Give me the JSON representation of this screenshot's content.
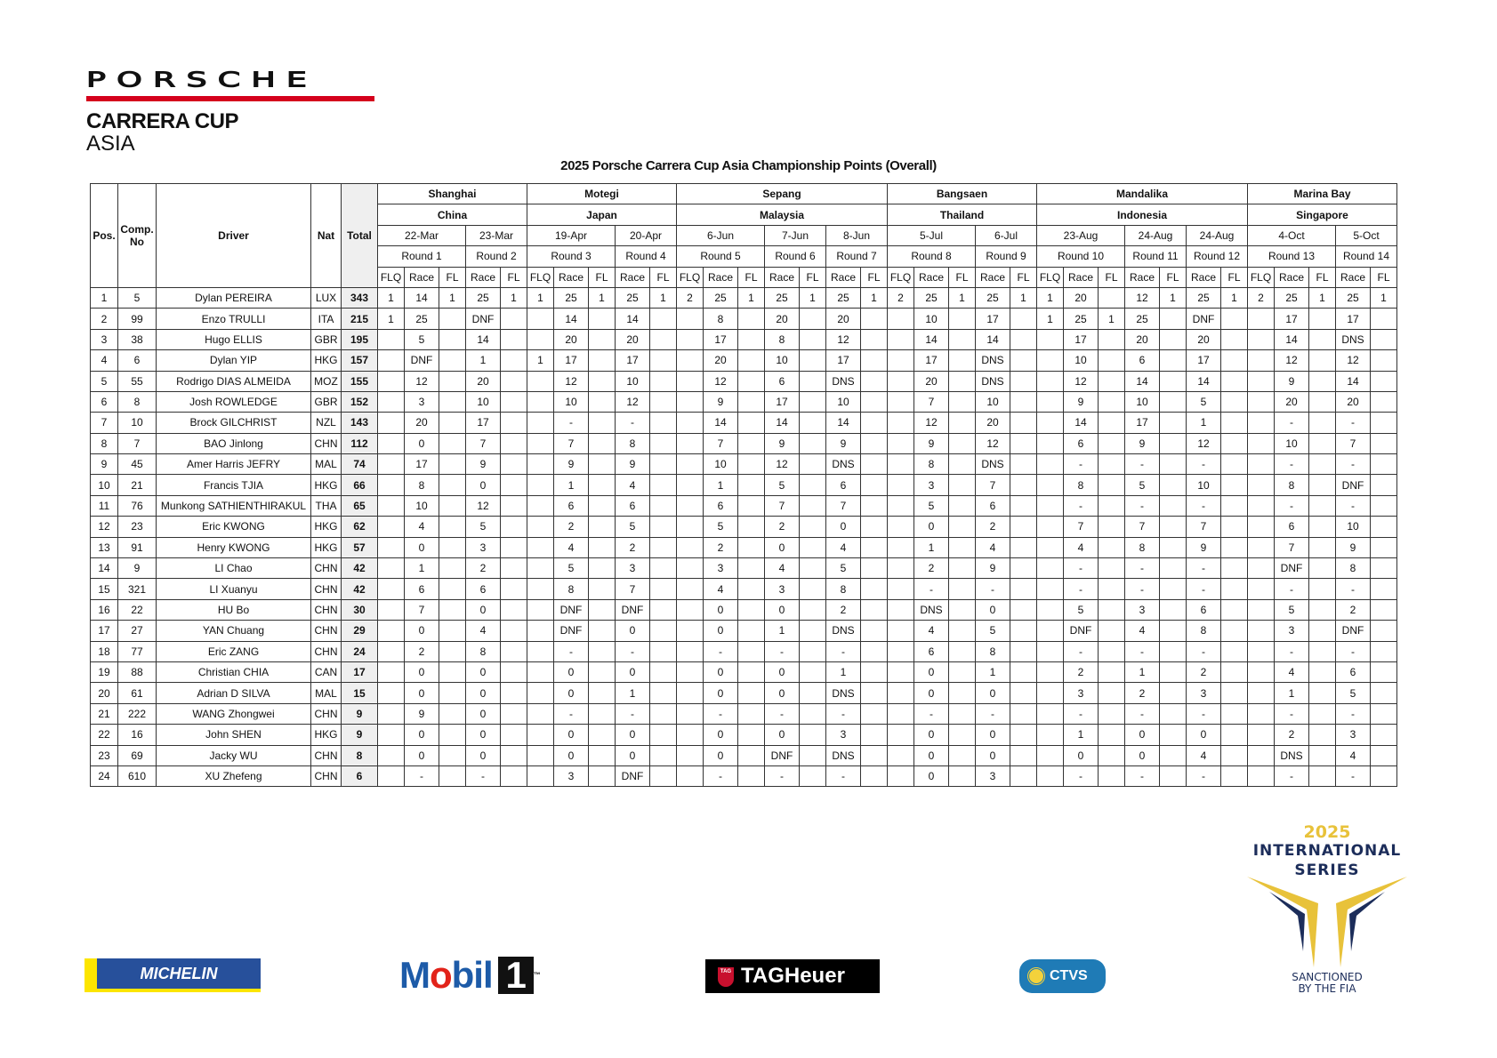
{
  "brand": {
    "porsche": "PORSCHE",
    "series": "CARRERA CUP",
    "region": "ASIA",
    "accent_color": "#d5001c"
  },
  "title": "2025 Porsche Carrera Cup Asia Championship Points (Overall)",
  "headers": {
    "pos": "Pos.",
    "comp_no": "Comp. No",
    "driver": "Driver",
    "nat": "Nat",
    "total": "Total",
    "flq": "FLQ",
    "race": "Race",
    "fl": "FL"
  },
  "venues": [
    {
      "venue": "Shanghai",
      "country": "China",
      "rounds": [
        0,
        1
      ]
    },
    {
      "venue": "Motegi",
      "country": "Japan",
      "rounds": [
        2,
        3
      ]
    },
    {
      "venue": "Sepang",
      "country": "Malaysia",
      "rounds": [
        4,
        5,
        6
      ]
    },
    {
      "venue": "Bangsaen",
      "country": "Thailand",
      "rounds": [
        7,
        8
      ]
    },
    {
      "venue": "Mandalika",
      "country": "Indonesia",
      "rounds": [
        9,
        10,
        11
      ]
    },
    {
      "venue": "Marina Bay",
      "country": "Singapore",
      "rounds": [
        12,
        13
      ]
    }
  ],
  "rounds": [
    {
      "date": "22-Mar",
      "label": "Round 1",
      "flq": true
    },
    {
      "date": "23-Mar",
      "label": "Round 2",
      "flq": false
    },
    {
      "date": "19-Apr",
      "label": "Round 3",
      "flq": true
    },
    {
      "date": "20-Apr",
      "label": "Round 4",
      "flq": false
    },
    {
      "date": "6-Jun",
      "label": "Round 5",
      "flq": true
    },
    {
      "date": "7-Jun",
      "label": "Round 6",
      "flq": false
    },
    {
      "date": "8-Jun",
      "label": "Round 7",
      "flq": false
    },
    {
      "date": "5-Jul",
      "label": "Round 8",
      "flq": true
    },
    {
      "date": "6-Jul",
      "label": "Round 9",
      "flq": false
    },
    {
      "date": "23-Aug",
      "label": "Round 10",
      "flq": true
    },
    {
      "date": "24-Aug",
      "label": "Round 11",
      "flq": false
    },
    {
      "date": "24-Aug",
      "label": "Round 12",
      "flq": false
    },
    {
      "date": "4-Oct",
      "label": "Round 13",
      "flq": true
    },
    {
      "date": "5-Oct",
      "label": "Round 14",
      "flq": false
    }
  ],
  "drivers": [
    {
      "pos": "1",
      "no": "5",
      "name": "Dylan PEREIRA",
      "nat": "LUX",
      "total": "343",
      "race": [
        "14",
        "25",
        "25",
        "25",
        "25",
        "25",
        "25",
        "25",
        "25",
        "20",
        "12",
        "25",
        "25",
        "25"
      ],
      "flq": [
        "1",
        "",
        "1",
        "",
        "2",
        "",
        "",
        "2",
        "",
        "1",
        "",
        "",
        "2",
        ""
      ],
      "fl": [
        "1",
        "1",
        "1",
        "1",
        "1",
        "1",
        "1",
        "1",
        "1",
        "",
        "1",
        "1",
        "1",
        "1"
      ]
    },
    {
      "pos": "2",
      "no": "99",
      "name": "Enzo TRULLI",
      "nat": "ITA",
      "total": "215",
      "race": [
        "25",
        "DNF",
        "14",
        "14",
        "8",
        "20",
        "20",
        "10",
        "17",
        "25",
        "25",
        "DNF",
        "17",
        "17"
      ],
      "flq": [
        "1",
        "",
        "",
        "",
        "",
        "",
        "",
        "",
        "",
        "1",
        "",
        "",
        "",
        ""
      ],
      "fl": [
        "",
        "",
        "",
        "",
        "",
        "",
        "",
        "",
        "",
        "1",
        "",
        "",
        "",
        ""
      ]
    },
    {
      "pos": "3",
      "no": "38",
      "name": "Hugo ELLIS",
      "nat": "GBR",
      "total": "195",
      "race": [
        "5",
        "14",
        "20",
        "20",
        "17",
        "8",
        "12",
        "14",
        "14",
        "17",
        "20",
        "20",
        "14",
        "DNS"
      ]
    },
    {
      "pos": "4",
      "no": "6",
      "name": "Dylan YIP",
      "nat": "HKG",
      "total": "157",
      "race": [
        "DNF",
        "1",
        "17",
        "17",
        "20",
        "10",
        "17",
        "17",
        "DNS",
        "10",
        "6",
        "17",
        "12",
        "12"
      ],
      "flq": [
        "",
        "",
        "1",
        "",
        "",
        "",
        "",
        "",
        "",
        "",
        "",
        "",
        "",
        ""
      ]
    },
    {
      "pos": "5",
      "no": "55",
      "name": "Rodrigo DIAS ALMEIDA",
      "nat": "MOZ",
      "total": "155",
      "race": [
        "12",
        "20",
        "12",
        "10",
        "12",
        "6",
        "DNS",
        "20",
        "DNS",
        "12",
        "14",
        "14",
        "9",
        "14"
      ]
    },
    {
      "pos": "6",
      "no": "8",
      "name": "Josh ROWLEDGE",
      "nat": "GBR",
      "total": "152",
      "race": [
        "3",
        "10",
        "10",
        "12",
        "9",
        "17",
        "10",
        "7",
        "10",
        "9",
        "10",
        "5",
        "20",
        "20"
      ]
    },
    {
      "pos": "7",
      "no": "10",
      "name": "Brock GILCHRIST",
      "nat": "NZL",
      "total": "143",
      "race": [
        "20",
        "17",
        "-",
        "-",
        "14",
        "14",
        "14",
        "12",
        "20",
        "14",
        "17",
        "1",
        "-",
        "-"
      ]
    },
    {
      "pos": "8",
      "no": "7",
      "name": "BAO Jinlong",
      "nat": "CHN",
      "total": "112",
      "race": [
        "0",
        "7",
        "7",
        "8",
        "7",
        "9",
        "9",
        "9",
        "12",
        "6",
        "9",
        "12",
        "10",
        "7"
      ]
    },
    {
      "pos": "9",
      "no": "45",
      "name": "Amer Harris JEFRY",
      "nat": "MAL",
      "total": "74",
      "race": [
        "17",
        "9",
        "9",
        "9",
        "10",
        "12",
        "DNS",
        "8",
        "DNS",
        "-",
        "-",
        "-",
        "-",
        "-"
      ]
    },
    {
      "pos": "10",
      "no": "21",
      "name": "Francis TJIA",
      "nat": "HKG",
      "total": "66",
      "race": [
        "8",
        "0",
        "1",
        "4",
        "1",
        "5",
        "6",
        "3",
        "7",
        "8",
        "5",
        "10",
        "8",
        "DNF"
      ]
    },
    {
      "pos": "11",
      "no": "76",
      "name": "Munkong SATHIENTHIRAKUL",
      "nat": "THA",
      "total": "65",
      "race": [
        "10",
        "12",
        "6",
        "6",
        "6",
        "7",
        "7",
        "5",
        "6",
        "-",
        "-",
        "-",
        "-",
        "-"
      ]
    },
    {
      "pos": "12",
      "no": "23",
      "name": "Eric KWONG",
      "nat": "HKG",
      "total": "62",
      "race": [
        "4",
        "5",
        "2",
        "5",
        "5",
        "2",
        "0",
        "0",
        "2",
        "7",
        "7",
        "7",
        "6",
        "10"
      ]
    },
    {
      "pos": "13",
      "no": "91",
      "name": "Henry KWONG",
      "nat": "HKG",
      "total": "57",
      "race": [
        "0",
        "3",
        "4",
        "2",
        "2",
        "0",
        "4",
        "1",
        "4",
        "4",
        "8",
        "9",
        "7",
        "9"
      ]
    },
    {
      "pos": "14",
      "no": "9",
      "name": "LI Chao",
      "nat": "CHN",
      "total": "42",
      "race": [
        "1",
        "2",
        "5",
        "3",
        "3",
        "4",
        "5",
        "2",
        "9",
        "-",
        "-",
        "-",
        "DNF",
        "8"
      ]
    },
    {
      "pos": "15",
      "no": "321",
      "name": "LI Xuanyu",
      "nat": "CHN",
      "total": "42",
      "race": [
        "6",
        "6",
        "8",
        "7",
        "4",
        "3",
        "8",
        "-",
        "-",
        "-",
        "-",
        "-",
        "-",
        "-"
      ]
    },
    {
      "pos": "16",
      "no": "22",
      "name": "HU Bo",
      "nat": "CHN",
      "total": "30",
      "race": [
        "7",
        "0",
        "DNF",
        "DNF",
        "0",
        "0",
        "2",
        "DNS",
        "0",
        "5",
        "3",
        "6",
        "5",
        "2"
      ]
    },
    {
      "pos": "17",
      "no": "27",
      "name": "YAN Chuang",
      "nat": "CHN",
      "total": "29",
      "race": [
        "0",
        "4",
        "DNF",
        "0",
        "0",
        "1",
        "DNS",
        "4",
        "5",
        "DNF",
        "4",
        "8",
        "3",
        "DNF"
      ]
    },
    {
      "pos": "18",
      "no": "77",
      "name": "Eric ZANG",
      "nat": "CHN",
      "total": "24",
      "race": [
        "2",
        "8",
        "-",
        "-",
        "-",
        "-",
        "-",
        "6",
        "8",
        "-",
        "-",
        "-",
        "-",
        "-"
      ]
    },
    {
      "pos": "19",
      "no": "88",
      "name": "Christian CHIA",
      "nat": "CAN",
      "total": "17",
      "race": [
        "0",
        "0",
        "0",
        "0",
        "0",
        "0",
        "1",
        "0",
        "1",
        "2",
        "1",
        "2",
        "4",
        "6"
      ]
    },
    {
      "pos": "20",
      "no": "61",
      "name": "Adrian D SILVA",
      "nat": "MAL",
      "total": "15",
      "race": [
        "0",
        "0",
        "0",
        "1",
        "0",
        "0",
        "DNS",
        "0",
        "0",
        "3",
        "2",
        "3",
        "1",
        "5"
      ]
    },
    {
      "pos": "21",
      "no": "222",
      "name": "WANG Zhongwei",
      "nat": "CHN",
      "total": "9",
      "race": [
        "9",
        "0",
        "-",
        "-",
        "-",
        "-",
        "-",
        "-",
        "-",
        "-",
        "-",
        "-",
        "-",
        "-"
      ]
    },
    {
      "pos": "22",
      "no": "16",
      "name": "John SHEN",
      "nat": "HKG",
      "total": "9",
      "race": [
        "0",
        "0",
        "0",
        "0",
        "0",
        "0",
        "3",
        "0",
        "0",
        "1",
        "0",
        "0",
        "2",
        "3"
      ]
    },
    {
      "pos": "23",
      "no": "69",
      "name": "Jacky WU",
      "nat": "CHN",
      "total": "8",
      "race": [
        "0",
        "0",
        "0",
        "0",
        "0",
        "DNF",
        "DNS",
        "0",
        "0",
        "0",
        "0",
        "4",
        "DNS",
        "4"
      ]
    },
    {
      "pos": "24",
      "no": "610",
      "name": "XU Zhefeng",
      "nat": "CHN",
      "total": "6",
      "race": [
        "-",
        "-",
        "3",
        "DNF",
        "-",
        "-",
        "-",
        "0",
        "3",
        "-",
        "-",
        "-",
        "-",
        "-"
      ]
    }
  ],
  "sponsors": {
    "michelin": "MICHELIN",
    "mobil": {
      "word_a": "M",
      "word_o": "o",
      "word_b": "bil",
      "one": "1",
      "tm": "™"
    },
    "tag": {
      "badge": "TAG",
      "word": "TAGHeuer"
    },
    "ctvs": "CTVS",
    "intl": {
      "year": "2025",
      "line1": "INTERNATIONAL",
      "line2": "SERIES",
      "fia1": "SANCTIONED",
      "fia2": "BY THE FIA"
    }
  }
}
